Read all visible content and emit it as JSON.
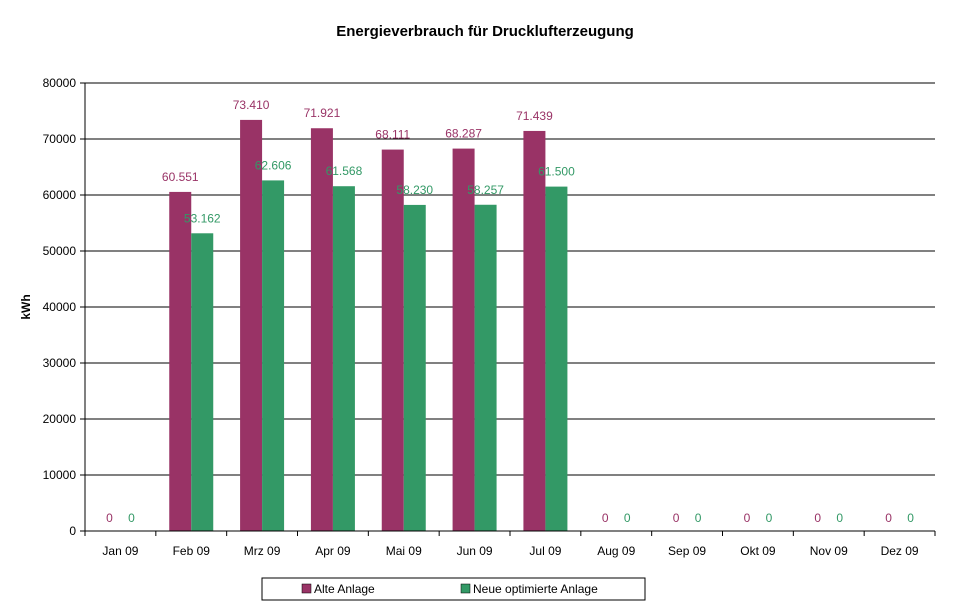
{
  "chart_data": {
    "type": "bar",
    "title": "Energieverbrauch für Drucklufterzeugung",
    "xlabel": "",
    "ylabel": "kWh",
    "ylim": [
      0,
      80000
    ],
    "yticks": [
      "0",
      "10000",
      "20000",
      "30000",
      "40000",
      "50000",
      "60000",
      "70000",
      "80000"
    ],
    "grid": true,
    "legend_position": "bottom",
    "categories": [
      "Jan 09",
      "Feb 09",
      "Mrz 09",
      "Apr 09",
      "Mai 09",
      "Jun 09",
      "Jul 09",
      "Aug 09",
      "Sep 09",
      "Okt 09",
      "Nov 09",
      "Dez 09"
    ],
    "series": [
      {
        "name": "Alte Anlage",
        "color": "#993366",
        "values": [
          0,
          60551,
          73410,
          71921,
          68111,
          68287,
          71439,
          0,
          0,
          0,
          0,
          0
        ],
        "labels": [
          "0",
          "60.551",
          "73.410",
          "71.921",
          "68.111",
          "68.287",
          "71.439",
          "0",
          "0",
          "0",
          "0",
          "0"
        ]
      },
      {
        "name": "Neue optimierte Anlage",
        "color": "#339966",
        "values": [
          0,
          53162,
          62606,
          61568,
          58230,
          58257,
          61500,
          0,
          0,
          0,
          0,
          0
        ],
        "labels": [
          "0",
          "53.162",
          "62.606",
          "61.568",
          "58.230",
          "58.257",
          "61.500",
          "0",
          "0",
          "0",
          "0",
          "0"
        ]
      }
    ]
  }
}
